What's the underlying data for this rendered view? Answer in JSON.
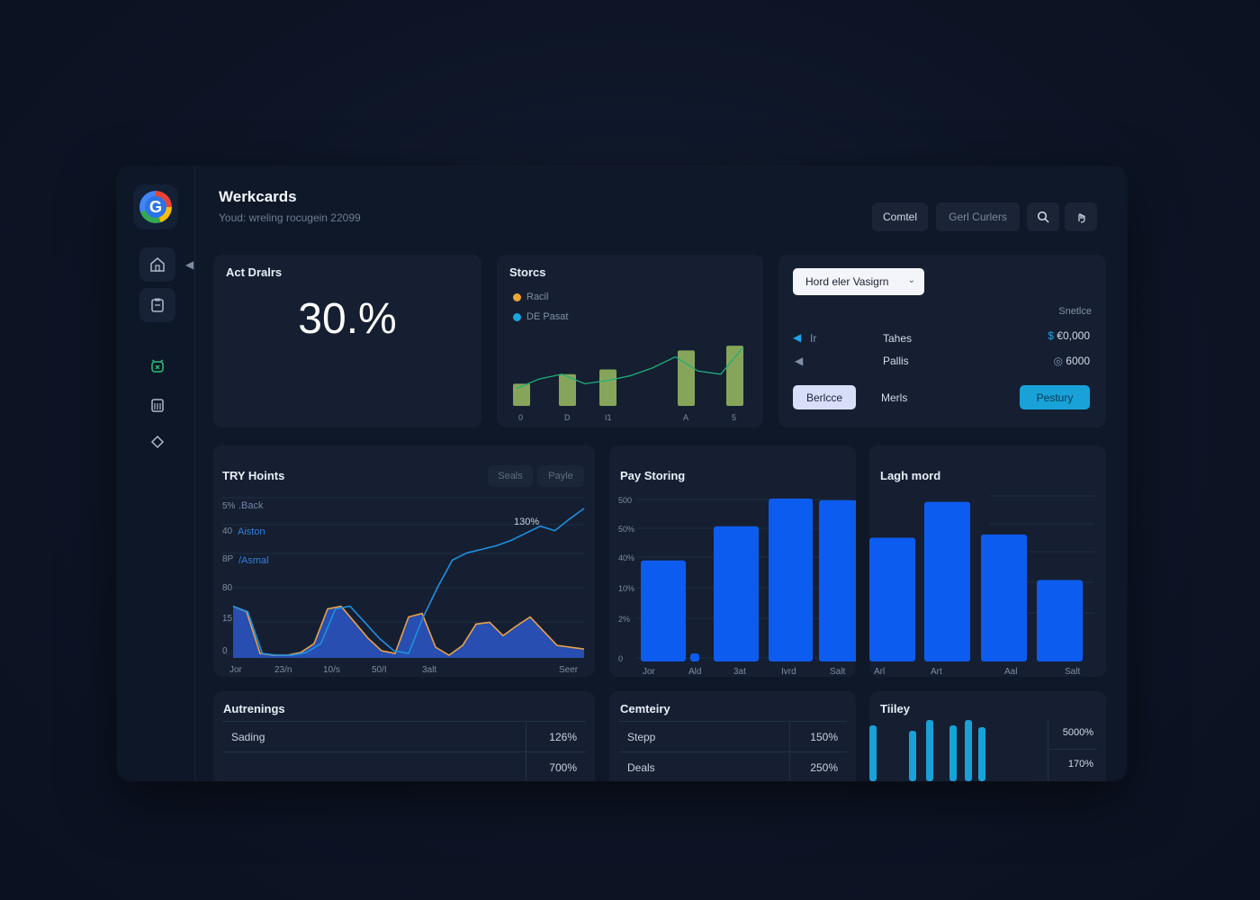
{
  "header": {
    "title": "Werkcards",
    "subtitle": "Youd: wreling rocugein 22099",
    "cancel_label": "Comtel",
    "secondary_label": "Gerl Curlers"
  },
  "cards": {
    "kpi": {
      "title": "Act Dralrs",
      "value": "30.%"
    },
    "stores": {
      "title": "Storcs",
      "legend": [
        {
          "label": "Racil",
          "color": "#f0a431"
        },
        {
          "label": "DE Pasat",
          "color": "#1aa6e3"
        }
      ]
    },
    "selector": {
      "select_value": "Hord eler Vasigrn",
      "column_header": "Snetlce",
      "rows": [
        {
          "key": "Ir",
          "label": "Tahes",
          "value": "€0,000"
        },
        {
          "key": "",
          "label": "Pallis",
          "value": "6000"
        }
      ],
      "button_primary": "Berlcce",
      "middle_label": "Merls",
      "button_accent": "Pestury"
    },
    "try_hoints": {
      "title": "TRY Hoints",
      "tab1": "Seals",
      "tab2": "Payle"
    },
    "pay_storing": {
      "title": "Pay Storing"
    },
    "lagh_mord": {
      "title": "Lagh mord"
    },
    "autrenings": {
      "title": "Autrenings",
      "rows": [
        {
          "label": "Sading",
          "value": "126%"
        },
        {
          "label": "",
          "value": "700%"
        }
      ]
    },
    "cemteiry": {
      "title": "Cemteiry",
      "rows": [
        {
          "label": "Stepp",
          "value": "150%"
        },
        {
          "label": "Deals",
          "value": "250%"
        }
      ]
    },
    "tiiley": {
      "title": "Tiiley",
      "values_text": [
        "5000%",
        "170%"
      ]
    }
  },
  "colors": {
    "accent": "#18a2d8",
    "bar_blue": "#0d5cf0",
    "bar_green": "#86a55a",
    "line_orange": "#e9a14a",
    "line_blue": "#1f8fe0"
  },
  "icons": [
    "home-icon",
    "clipboard-icon",
    "alarm-clock-icon",
    "calendar-icon",
    "diamond-icon",
    "search-icon",
    "gesture-icon",
    "collapse-arrow-icon",
    "chevron-down-icon"
  ],
  "chart_data": [
    {
      "type": "bar",
      "name_ref": "stores",
      "categories": [
        "0",
        "D",
        "I1",
        "A",
        "5"
      ],
      "tick_labels": [
        "0",
        "D",
        "I1",
        "A",
        "5"
      ],
      "values": [
        28,
        40,
        46,
        70,
        76
      ],
      "line_overlay": [
        22,
        34,
        40,
        28,
        32,
        38,
        48,
        62,
        44,
        40,
        74
      ],
      "ylim": [
        0,
        100
      ]
    },
    {
      "type": "area",
      "name_ref": "try_hoints",
      "ytick_labels": [
        "5%",
        "40",
        "8P",
        "80",
        "15",
        "0"
      ],
      "series_labels": [
        ".Back",
        "Aiston",
        "/Asmal"
      ],
      "annotation": "130%",
      "xtick_labels": [
        "Jor",
        "23/n",
        "10/s",
        "50/I",
        "3alt",
        "Seer"
      ],
      "area_series": [
        58,
        52,
        5,
        3,
        3,
        6,
        16,
        55,
        58,
        40,
        22,
        8,
        5,
        46,
        50,
        12,
        3,
        14,
        38,
        40,
        25,
        36,
        46,
        30,
        14,
        12,
        10
      ],
      "line_series": [
        58,
        52,
        5,
        3,
        3,
        6,
        16,
        55,
        58,
        40,
        22,
        8,
        5,
        46,
        80,
        110,
        118,
        122,
        126,
        132,
        140,
        148,
        143,
        156,
        168
      ],
      "ylim": [
        0,
        180
      ]
    },
    {
      "type": "bar",
      "name_ref": "pay_storing",
      "ytick_labels": [
        "500",
        "50%",
        "40%",
        "10%",
        "2%",
        "0"
      ],
      "xtick_labels": [
        "Jor",
        "Ald",
        "3at",
        "Ivrd",
        "Salt"
      ],
      "values": [
        62,
        5,
        83,
        100,
        99
      ],
      "ylim": [
        0,
        105
      ]
    },
    {
      "type": "bar",
      "name_ref": "lagh_mord",
      "xtick_labels": [
        "Arl",
        "Art",
        "Aal",
        "Salt"
      ],
      "values": [
        76,
        98,
        78,
        50
      ],
      "ylim": [
        0,
        105
      ]
    },
    {
      "type": "bar",
      "name_ref": "tiiley",
      "values": [
        62,
        56,
        68,
        62,
        68,
        60,
        58
      ],
      "ylim": [
        0,
        70
      ]
    }
  ]
}
